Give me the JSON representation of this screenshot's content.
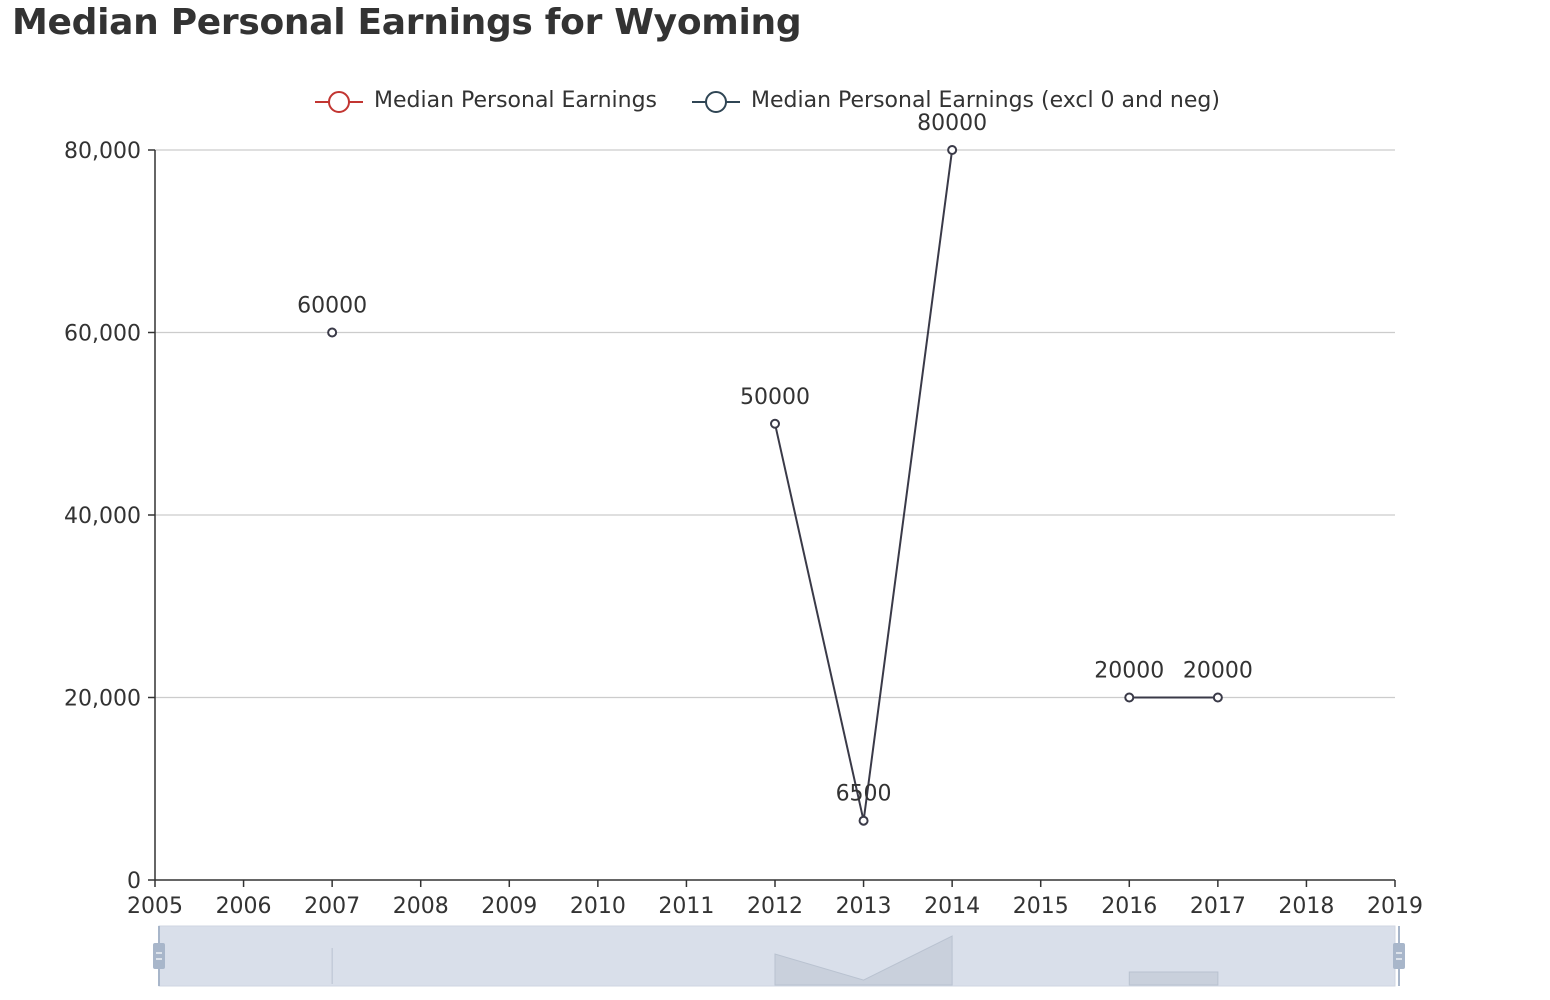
{
  "chart_data": {
    "type": "line",
    "title": "Median Personal Earnings for Wyoming",
    "xlabel": "",
    "ylabel": "",
    "xlim": [
      2005,
      2019
    ],
    "ylim": [
      0,
      80000
    ],
    "x_ticks": [
      "2005",
      "2006",
      "2007",
      "2008",
      "2009",
      "2010",
      "2011",
      "2012",
      "2013",
      "2014",
      "2015",
      "2016",
      "2017",
      "2018",
      "2019"
    ],
    "y_ticks": [
      0,
      20000,
      40000,
      60000,
      80000
    ],
    "y_tick_labels": [
      "0",
      "20,000",
      "40,000",
      "60,000",
      "80,000"
    ],
    "grid": true,
    "legend_position": "top-center",
    "series": [
      {
        "name": "Median Personal Earnings",
        "color": "#c23531",
        "points": []
      },
      {
        "name": "Median Personal Earnings (excl 0 and neg)",
        "color": "#2f4554",
        "points": [
          {
            "x": 2007,
            "y": 60000,
            "label": "60000"
          },
          {
            "x": 2008,
            "y": null
          },
          {
            "x": 2012,
            "y": 50000,
            "label": "50000"
          },
          {
            "x": 2013,
            "y": 6500,
            "label": "6500"
          },
          {
            "x": 2014,
            "y": 80000,
            "label": "80000"
          },
          {
            "x": 2015,
            "y": null
          },
          {
            "x": 2016,
            "y": 20000,
            "label": "20000"
          },
          {
            "x": 2017,
            "y": 20000,
            "label": "20000"
          }
        ]
      }
    ],
    "data_zoom": {
      "start": 0,
      "end": 100
    }
  }
}
